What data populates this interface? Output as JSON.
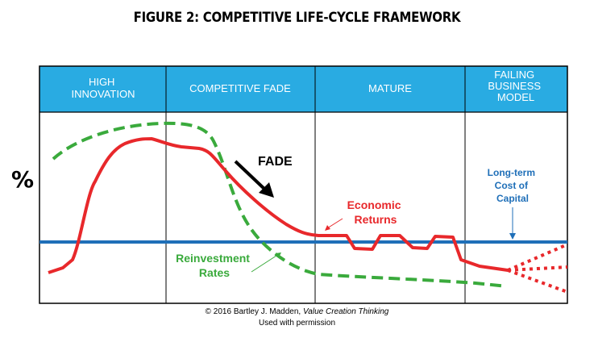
{
  "title": "FIGURE 2: COMPETITIVE LIFE-CYCLE FRAMEWORK",
  "y_axis_label": "%",
  "phases": [
    {
      "lines": [
        "HIGH",
        "INNOVATION"
      ]
    },
    {
      "lines": [
        "COMPETITIVE FADE"
      ]
    },
    {
      "lines": [
        "MATURE"
      ]
    },
    {
      "lines": [
        "FAILING",
        "BUSINESS",
        "MODEL"
      ]
    }
  ],
  "annotations": {
    "fade": "FADE",
    "economic_returns": [
      "Economic",
      "Returns"
    ],
    "reinvestment_rates": [
      "Reinvestment",
      "Rates"
    ],
    "cost_of_capital": [
      "Long-term",
      "Cost of",
      "Capital"
    ]
  },
  "colors": {
    "header_bg": "#29abe2",
    "economic_returns": "#e8282b",
    "reinvestment_rates": "#3aaa3c",
    "cost_of_capital": "#1f6fb8",
    "cost_of_capital_text": "#1f6fb8"
  },
  "footer": {
    "line1_prefix": "© 2016 Bartley J. Madden, ",
    "line1_italic": "Value Creation Thinking",
    "line2": "Used with permission"
  }
}
